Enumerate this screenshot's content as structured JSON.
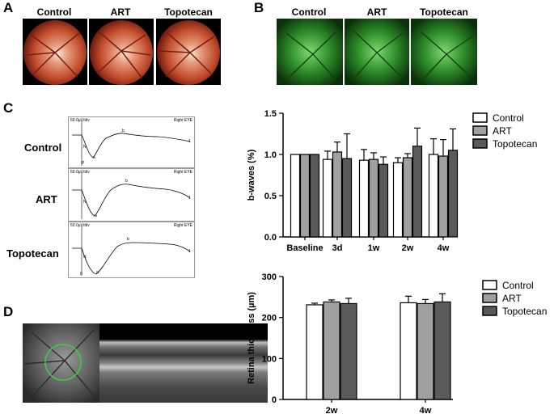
{
  "panel_letters": {
    "a": "A",
    "b": "B",
    "c": "C",
    "d": "D"
  },
  "panel_a": {
    "labels": [
      "Control",
      "ART",
      "Topotecan"
    ]
  },
  "panel_b": {
    "labels": [
      "Control",
      "ART",
      "Topotecan"
    ]
  },
  "panel_c": {
    "rows": [
      "Control",
      "ART",
      "Topotecan"
    ],
    "trace_scale": "50.0µV/div",
    "trace_eye": "Right EYE",
    "wave_labels": {
      "n": "N",
      "a": "a",
      "b": "b",
      "p": "P",
      "one": "1",
      "zero": "0"
    }
  },
  "colors": {
    "control": "#ffffff",
    "art": "#a0a0a0",
    "topotecan": "#5a5a5a",
    "fluorescein": "#2f8f2a",
    "oct_ring": "#3ccf3c"
  },
  "chart_data": [
    {
      "type": "bar",
      "ylabel": "b-waves (%)",
      "categories": [
        "Baseline",
        "3d",
        "1w",
        "2w",
        "4w"
      ],
      "ylim": [
        0,
        1.5
      ],
      "yticks": [
        "0.0",
        "0.5",
        "1.0",
        "1.5"
      ],
      "legend_position": "top-right",
      "series": [
        {
          "name": "Control",
          "values": [
            1.0,
            0.94,
            0.93,
            0.9,
            1.0
          ],
          "errors": [
            0,
            0.1,
            0.13,
            0.06,
            0.19
          ]
        },
        {
          "name": "ART",
          "values": [
            1.0,
            1.03,
            0.94,
            0.96,
            0.98
          ],
          "errors": [
            0,
            0.12,
            0.08,
            0.05,
            0.2
          ]
        },
        {
          "name": "Topotecan",
          "values": [
            1.0,
            0.95,
            0.88,
            1.1,
            1.05
          ],
          "errors": [
            0,
            0.3,
            0.09,
            0.22,
            0.26
          ]
        }
      ]
    },
    {
      "type": "bar",
      "ylabel": "Retina thickness (µm)",
      "categories": [
        "2w",
        "4w"
      ],
      "ylim": [
        0,
        300
      ],
      "yticks": [
        "0",
        "100",
        "200",
        "300"
      ],
      "legend_position": "top-right",
      "series": [
        {
          "name": "Control",
          "values": [
            231,
            236
          ],
          "errors": [
            4,
            16
          ]
        },
        {
          "name": "ART",
          "values": [
            238,
            234
          ],
          "errors": [
            5,
            10
          ]
        },
        {
          "name": "Topotecan",
          "values": [
            234,
            238
          ],
          "errors": [
            13,
            20
          ]
        }
      ]
    }
  ]
}
